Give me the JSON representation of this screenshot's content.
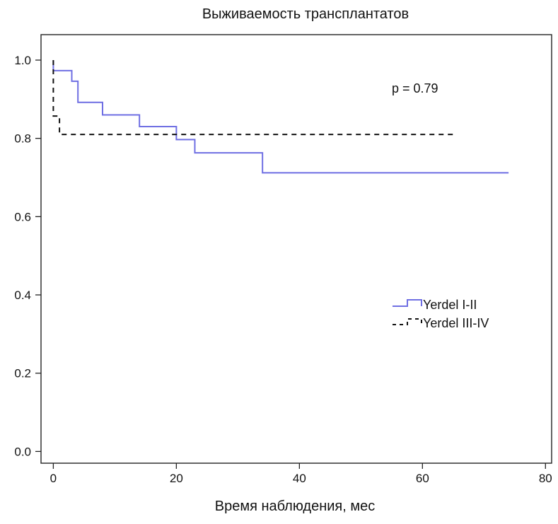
{
  "chart_data": {
    "type": "line",
    "title": "Выживаемость трансплантатов",
    "xlabel": "Время наблюдения, мес",
    "ylabel": "",
    "xlim": [
      -2,
      81
    ],
    "ylim": [
      -0.03,
      1.065
    ],
    "x_ticks": [
      0,
      20,
      40,
      60,
      80
    ],
    "x_tick_labels": [
      "0",
      "20",
      "40",
      "60",
      "80"
    ],
    "y_ticks": [
      0.0,
      0.2,
      0.4,
      0.6,
      0.8,
      1.0
    ],
    "y_tick_labels": [
      "0.0",
      "0.2",
      "0.4",
      "0.6",
      "0.8",
      "1.0"
    ],
    "grid": false,
    "legend": {
      "position": "right-middle",
      "items": [
        "Yerdel I-II",
        "Yerdel III-IV"
      ]
    },
    "annotation": "p = 0.79",
    "series": [
      {
        "name": "Yerdel I-II",
        "style": "solid",
        "color": "#6f6fe3",
        "x": [
          0,
          0,
          3,
          4,
          8,
          14,
          20,
          23,
          34,
          74
        ],
        "y": [
          1.0,
          0.973,
          0.946,
          0.892,
          0.86,
          0.83,
          0.797,
          0.763,
          0.712,
          0.712
        ]
      },
      {
        "name": "Yerdel III-IV",
        "style": "dashed",
        "color": "#111111",
        "x": [
          0,
          0,
          1,
          65
        ],
        "y": [
          1.0,
          0.857,
          0.81,
          0.81
        ]
      }
    ]
  }
}
